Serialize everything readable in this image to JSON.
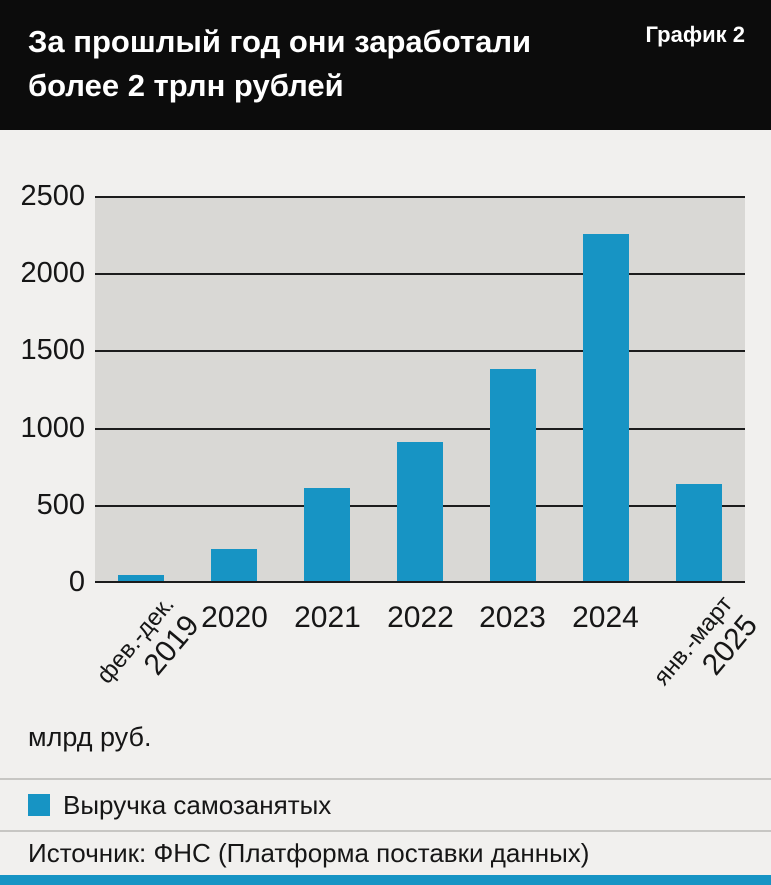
{
  "header": {
    "title_line1": "За прошлый год они заработали",
    "title_line2": "более 2 трлн рублей",
    "chart_label": "График 2"
  },
  "chart_data": {
    "type": "bar",
    "title": "За прошлый год они заработали более 2 трлн рублей",
    "categories": [
      "фев.-дек.\n2019",
      "2020",
      "2021",
      "2022",
      "2023",
      "2024",
      "янв.-март\n2025"
    ],
    "values": [
      40,
      210,
      600,
      900,
      1370,
      2250,
      630
    ],
    "xlabel": "",
    "ylabel": "млрд руб.",
    "ylim": [
      0,
      2500
    ],
    "yticks": [
      0,
      500,
      1000,
      1500,
      2000,
      2500
    ],
    "grid": "horizontal",
    "legend_position": "bottom",
    "legend": [
      "Выручка самозанятых"
    ],
    "bar_color": "#1794c4"
  },
  "footer": {
    "unit_label": "млрд руб.",
    "legend_label": "Выручка самозанятых",
    "source": "Источник: ФНС (Платформа поставки данных)"
  },
  "colors": {
    "accent": "#1794c4",
    "header_bg": "#0c0c0c",
    "plot_bg": "#d9d8d5"
  }
}
